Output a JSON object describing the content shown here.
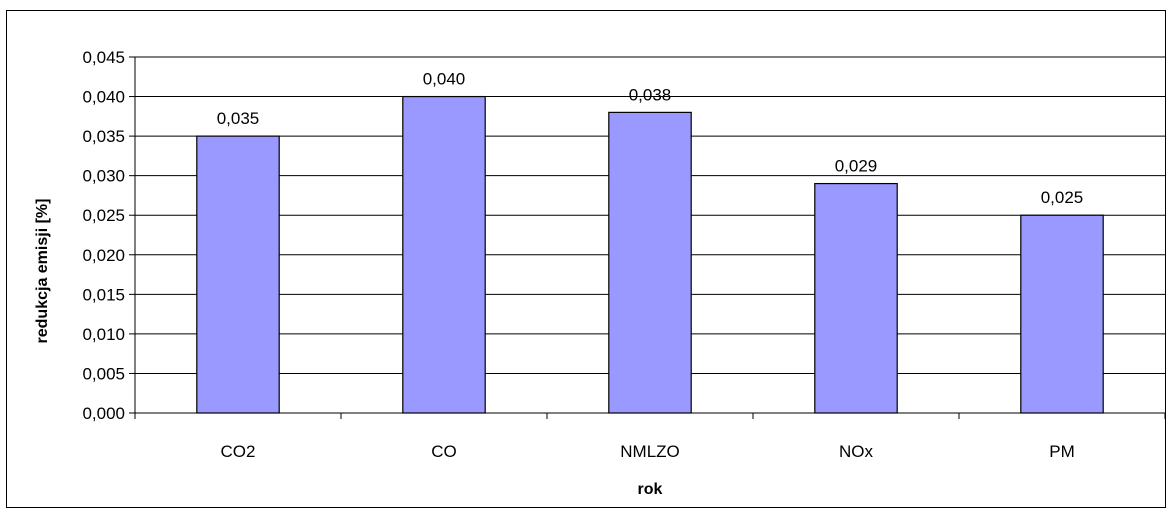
{
  "chart_data": {
    "type": "bar",
    "categories": [
      "CO2",
      "CO",
      "NMLZO",
      "NOx",
      "PM"
    ],
    "values": [
      0.035,
      0.04,
      0.038,
      0.029,
      0.025
    ],
    "data_labels": [
      "0,035",
      "0,040",
      "0,038",
      "0,029",
      "0,025"
    ],
    "xlabel": "rok",
    "ylabel": "redukcja emisji [%]",
    "ylim": [
      0,
      0.045
    ],
    "yticks": [
      0,
      0.005,
      0.01,
      0.015,
      0.02,
      0.025,
      0.03,
      0.035,
      0.04,
      0.045
    ],
    "ytick_labels": [
      "0,000",
      "0,005",
      "0,010",
      "0,015",
      "0,020",
      "0,025",
      "0,030",
      "0,035",
      "0,040",
      "0,045"
    ],
    "grid": true,
    "legend": false,
    "bar_color": "#9999ff"
  }
}
